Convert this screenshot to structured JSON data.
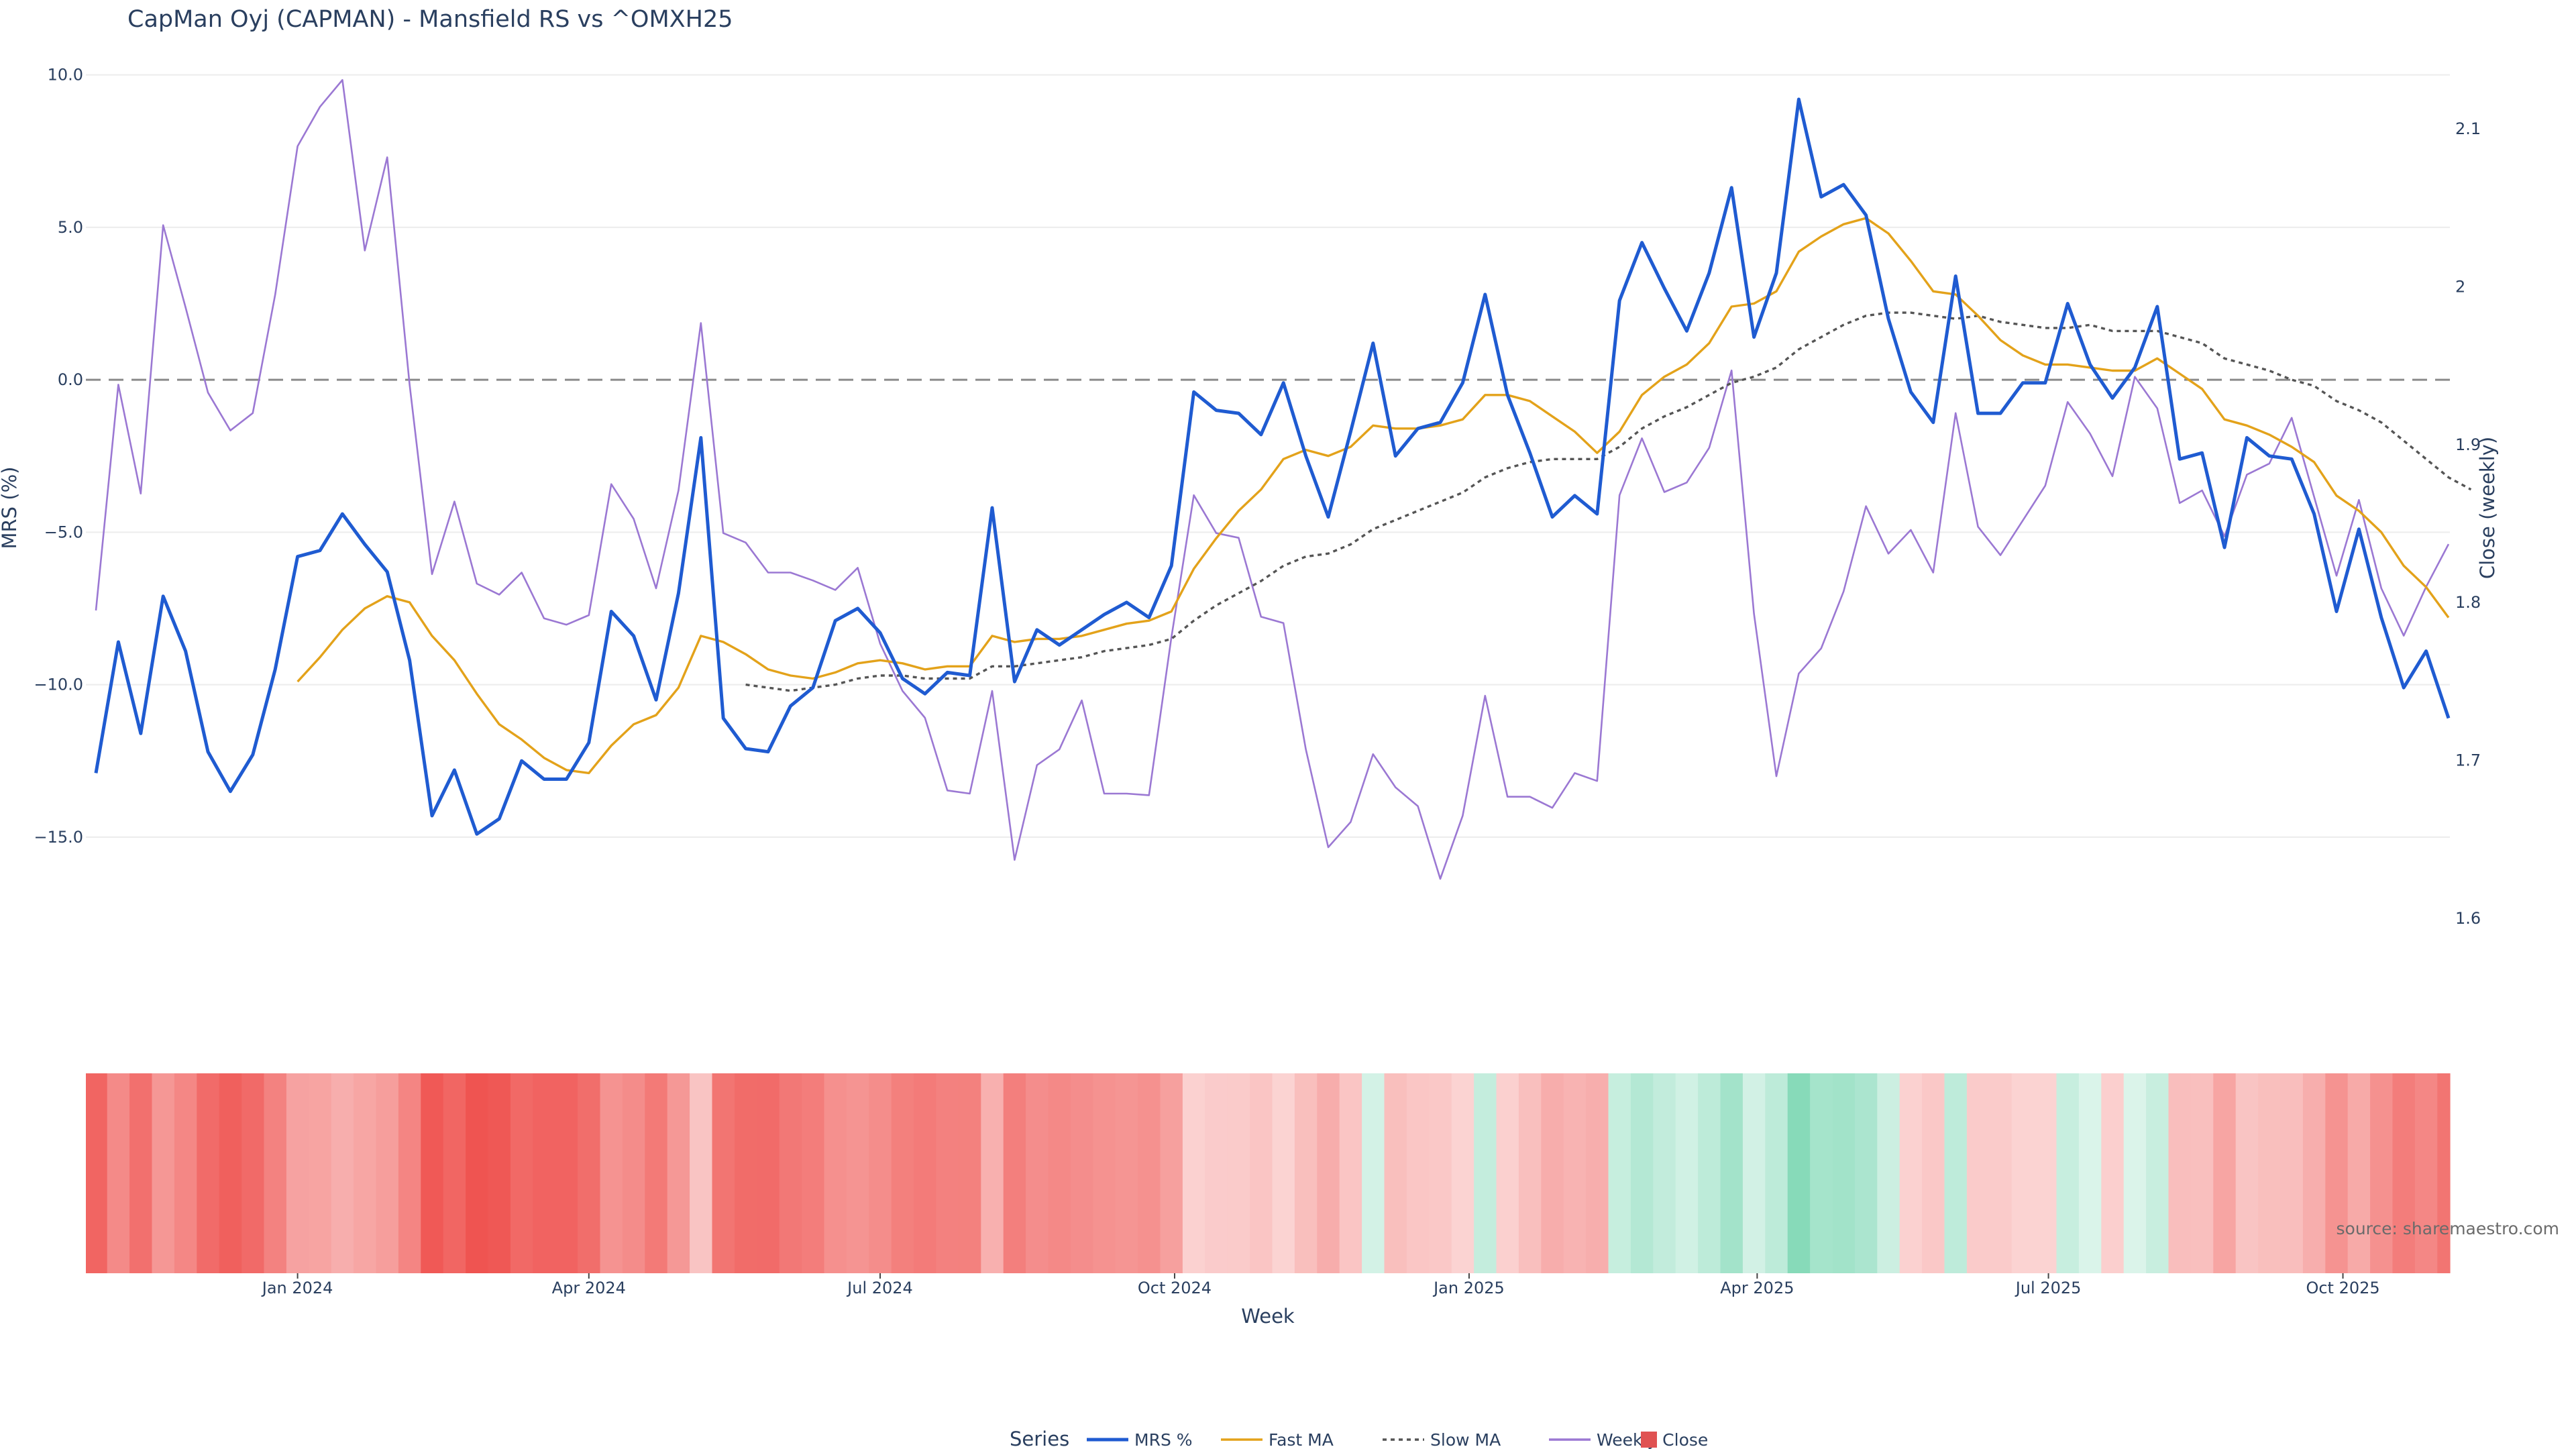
{
  "chart_data": {
    "type": "line",
    "title": "CapMan Oyj (CAPMAN) - Mansfield RS vs ^OMXH25",
    "xlabel": "Week",
    "ylabel_left": "MRS (%)",
    "ylabel_right": "Close (weekly)",
    "ylim_left": [
      -18.7,
      10.3
    ],
    "ylim_right": [
      1.58,
      2.14
    ],
    "yticks_left": [
      "10.0",
      "5.0",
      "0.0",
      "−5.0",
      "−10.0",
      "−15.0"
    ],
    "yticks_left_values": [
      10,
      5,
      0,
      -5,
      -10,
      -15
    ],
    "yticks_right": [
      "2.1",
      "2",
      "1.9",
      "1.8",
      "1.7",
      "1.6"
    ],
    "yticks_right_values": [
      2.1,
      2.0,
      1.9,
      1.8,
      1.7,
      1.6
    ],
    "xticks": [
      "Jan 2024",
      "Apr 2024",
      "Jul 2024",
      "Oct 2024",
      "Jan 2025",
      "Apr 2025",
      "Jul 2025",
      "Oct 2025"
    ],
    "x_start": "2023-10-30",
    "x_step_days": 7,
    "zero_line": true,
    "grid": true,
    "legend_title": "Series",
    "legend_position": "bottom-center",
    "series": [
      {
        "name": "MRS %",
        "color": "#1f5bd1",
        "axis": "left",
        "values": [
          -12.9,
          -8.6,
          -11.6,
          -7.1,
          -8.9,
          -12.2,
          -13.5,
          -12.3,
          -9.5,
          -5.8,
          -5.6,
          -4.4,
          -5.4,
          -6.3,
          -9.2,
          -14.3,
          -12.8,
          -14.9,
          -14.4,
          -12.5,
          -13.1,
          -13.1,
          -11.9,
          -7.6,
          -8.4,
          -10.5,
          -7.0,
          -1.9,
          -11.1,
          -12.1,
          -12.2,
          -10.7,
          -10.1,
          -7.9,
          -7.5,
          -8.3,
          -9.8,
          -10.3,
          -9.6,
          -9.7,
          -4.2,
          -9.9,
          -8.2,
          -8.7,
          -8.2,
          -7.7,
          -7.3,
          -7.8,
          -6.1,
          -0.4,
          -1.0,
          -1.1,
          -1.8,
          -0.1,
          -2.5,
          -4.5,
          -1.7,
          1.2,
          -2.5,
          -1.6,
          -1.4,
          -0.1,
          2.8,
          -0.5,
          -2.4,
          -4.5,
          -3.8,
          -4.4,
          2.6,
          4.5,
          3.0,
          1.6,
          3.5,
          6.3,
          1.4,
          3.5,
          9.2,
          6.0,
          6.4,
          5.4,
          2.0,
          -0.4,
          -1.4,
          3.4,
          -1.1,
          -1.1,
          -0.1,
          -0.1,
          2.5,
          0.5,
          -0.6,
          0.4,
          2.4,
          -2.6,
          -2.4,
          -5.5,
          -1.9,
          -2.5,
          -2.6,
          -4.4,
          -7.6,
          -4.9,
          -7.8,
          -10.1,
          -8.9,
          -11.1
        ]
      },
      {
        "name": "Fast MA",
        "color": "#e3a21a",
        "axis": "left",
        "values": [
          null,
          null,
          null,
          null,
          null,
          null,
          null,
          null,
          null,
          -9.9,
          -9.1,
          -8.2,
          -7.5,
          -7.1,
          -7.3,
          -8.4,
          -9.2,
          -10.3,
          -11.3,
          -11.8,
          -12.4,
          -12.8,
          -12.9,
          -12.0,
          -11.3,
          -11.0,
          -10.1,
          -8.4,
          -8.6,
          -9.0,
          -9.5,
          -9.7,
          -9.8,
          -9.6,
          -9.3,
          -9.2,
          -9.3,
          -9.5,
          -9.4,
          -9.4,
          -8.4,
          -8.6,
          -8.5,
          -8.5,
          -8.4,
          -8.2,
          -8.0,
          -7.9,
          -7.6,
          -6.2,
          -5.2,
          -4.3,
          -3.6,
          -2.6,
          -2.3,
          -2.5,
          -2.2,
          -1.5,
          -1.6,
          -1.6,
          -1.5,
          -1.3,
          -0.5,
          -0.5,
          -0.7,
          -1.2,
          -1.7,
          -2.4,
          -1.7,
          -0.5,
          0.1,
          0.5,
          1.2,
          2.4,
          2.5,
          2.9,
          4.2,
          4.7,
          5.1,
          5.3,
          4.8,
          3.9,
          2.9,
          2.8,
          2.1,
          1.3,
          0.8,
          0.5,
          0.5,
          0.4,
          0.3,
          0.3,
          0.7,
          0.2,
          -0.3,
          -1.3,
          -1.5,
          -1.8,
          -2.2,
          -2.7,
          -3.8,
          -4.3,
          -5.0,
          -6.1,
          -6.8,
          -7.8
        ]
      },
      {
        "name": "Slow MA",
        "color": "#555555",
        "axis": "left",
        "dash": true,
        "values": [
          null,
          null,
          null,
          null,
          null,
          null,
          null,
          null,
          null,
          null,
          null,
          null,
          null,
          null,
          null,
          null,
          null,
          null,
          null,
          null,
          null,
          null,
          null,
          null,
          null,
          null,
          null,
          null,
          null,
          -10.0,
          -10.1,
          -10.2,
          -10.1,
          -10.0,
          -9.8,
          -9.7,
          -9.7,
          -9.8,
          -9.8,
          -9.8,
          -9.4,
          -9.4,
          -9.3,
          -9.2,
          -9.1,
          -8.9,
          -8.8,
          -8.7,
          -8.5,
          -7.9,
          -7.4,
          -7.0,
          -6.6,
          -6.1,
          -5.8,
          -5.7,
          -5.4,
          -4.9,
          -4.6,
          -4.3,
          -4.0,
          -3.7,
          -3.2,
          -2.9,
          -2.7,
          -2.6,
          -2.6,
          -2.6,
          -2.2,
          -1.6,
          -1.2,
          -0.9,
          -0.5,
          -0.1,
          0.1,
          0.4,
          1.0,
          1.4,
          1.8,
          2.1,
          2.2,
          2.2,
          2.1,
          2.0,
          2.1,
          1.9,
          1.8,
          1.7,
          1.7,
          1.8,
          1.6,
          1.6,
          1.6,
          1.4,
          1.2,
          0.7,
          0.5,
          0.3,
          0.0,
          -0.2,
          -0.7,
          -1.0,
          -1.4,
          -2.0,
          -2.6,
          -3.2,
          -3.6
        ]
      },
      {
        "name": "Weekly Close",
        "color": "#9b78d3",
        "axis": "right",
        "values": [
          1.795,
          1.938,
          1.869,
          2.039,
          1.987,
          1.933,
          1.909,
          1.92,
          1.995,
          2.089,
          2.114,
          2.131,
          2.023,
          2.082,
          1.938,
          1.818,
          1.864,
          1.812,
          1.805,
          1.819,
          1.79,
          1.786,
          1.792,
          1.875,
          1.853,
          1.809,
          1.871,
          1.977,
          1.844,
          1.838,
          1.819,
          1.819,
          1.814,
          1.808,
          1.822,
          1.774,
          1.744,
          1.727,
          1.681,
          1.679,
          1.744,
          1.637,
          1.697,
          1.707,
          1.738,
          1.679,
          1.679,
          1.678,
          1.778,
          1.868,
          1.844,
          1.841,
          1.791,
          1.787,
          1.707,
          1.645,
          1.661,
          1.704,
          1.683,
          1.671,
          1.625,
          1.665,
          1.741,
          1.677,
          1.677,
          1.67,
          1.692,
          1.687,
          1.868,
          1.904,
          1.87,
          1.876,
          1.898,
          1.947,
          1.793,
          1.69,
          1.755,
          1.771,
          1.807,
          1.861,
          1.831,
          1.846,
          1.819,
          1.92,
          1.848,
          1.83,
          1.852,
          1.874,
          1.927,
          1.907,
          1.88,
          1.943,
          1.923,
          1.863,
          1.871,
          1.842,
          1.881,
          1.888,
          1.917,
          1.867,
          1.817,
          1.865,
          1.809,
          1.779,
          1.81,
          1.837
        ]
      }
    ],
    "heatmap_band": {
      "source_series": "MRS %",
      "color_scale": [
        "#ef5350",
        "#ffffff",
        "#7fd8b5"
      ],
      "color_range": [
        -15,
        10
      ]
    },
    "legend_extra_swatch_color": "#e05252",
    "annotation": "source: sharemaestro.com"
  }
}
